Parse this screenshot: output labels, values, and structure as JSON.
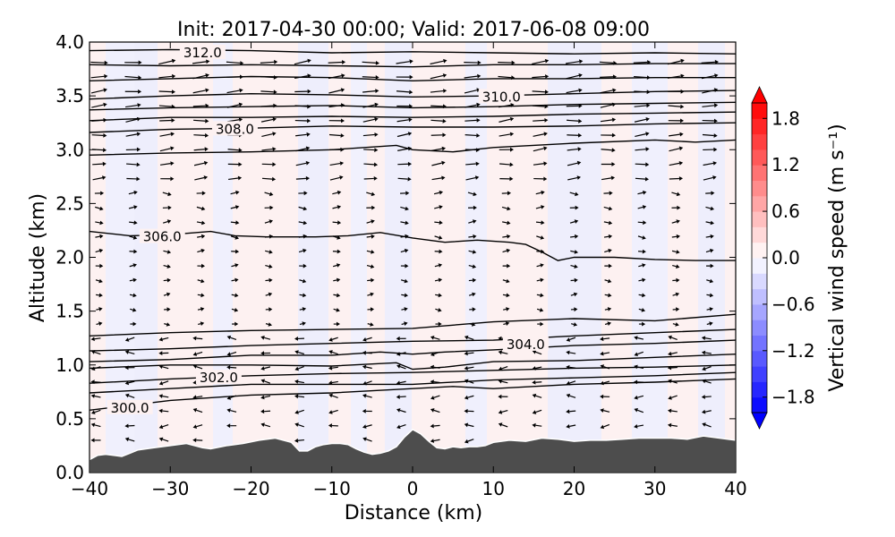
{
  "chart_data": {
    "type": "cross-section",
    "title": "Init: 2017-04-30 00:00; Valid: 2017-06-08 09:00",
    "xlabel": "Distance (km)",
    "ylabel": "Altitude (km)",
    "xlim": [
      -40,
      40
    ],
    "ylim": [
      0,
      4
    ],
    "x_ticks": [
      "−40",
      "−30",
      "−20",
      "−10",
      "0",
      "10",
      "20",
      "30",
      "40"
    ],
    "y_ticks": [
      "0.0",
      "0.5",
      "1.0",
      "1.5",
      "2.0",
      "2.5",
      "3.0",
      "3.5",
      "4.0"
    ],
    "grid": false,
    "colorbar": {
      "label": "Vertical wind speed (m s⁻¹)",
      "range": [
        -2.0,
        2.0
      ],
      "ticks": [
        "1.8",
        "1.2",
        "0.6",
        "0.0",
        "−0.6",
        "−1.2",
        "−1.8"
      ],
      "colors": {
        "positive": "#ff0000",
        "neutral": "#ffffff",
        "negative": "#0000ff"
      }
    },
    "contour_labels": [
      "312.0",
      "310.0",
      "308.0",
      "306.0",
      "304.0",
      "302.0",
      "300.0"
    ],
    "terrain": {
      "color": "#4d4d4d",
      "x": [
        -40,
        -39,
        -38,
        -37,
        -36,
        -35,
        -34,
        -33,
        -32,
        -30,
        -28,
        -26,
        -25,
        -23,
        -21,
        -19,
        -17,
        -15,
        -14,
        -13,
        -12,
        -11,
        -10,
        -9,
        -8,
        -7,
        -6,
        -5,
        -4,
        -3,
        -2,
        -1,
        0,
        1,
        2,
        3,
        4,
        5,
        6,
        7,
        8,
        9,
        10,
        12,
        14,
        16,
        18,
        20,
        22,
        24,
        26,
        28,
        30,
        32,
        34,
        36,
        38,
        40
      ],
      "y": [
        0.12,
        0.16,
        0.17,
        0.16,
        0.15,
        0.18,
        0.21,
        0.22,
        0.23,
        0.25,
        0.27,
        0.23,
        0.22,
        0.25,
        0.27,
        0.3,
        0.32,
        0.28,
        0.2,
        0.2,
        0.24,
        0.26,
        0.27,
        0.27,
        0.26,
        0.22,
        0.19,
        0.17,
        0.18,
        0.2,
        0.24,
        0.33,
        0.4,
        0.36,
        0.29,
        0.23,
        0.22,
        0.24,
        0.23,
        0.24,
        0.24,
        0.25,
        0.28,
        0.3,
        0.29,
        0.32,
        0.31,
        0.29,
        0.3,
        0.3,
        0.31,
        0.32,
        0.32,
        0.32,
        0.31,
        0.34,
        0.32,
        0.3
      ]
    },
    "contours": [
      {
        "x": [
          -40,
          -30,
          -20,
          -10,
          0,
          10,
          20,
          30,
          40
        ],
        "y": [
          3.92,
          3.93,
          3.92,
          3.9,
          3.91,
          3.9,
          3.89,
          3.9,
          3.89
        ]
      },
      {
        "x": [
          -40,
          -30,
          -20,
          -10,
          0,
          10,
          20,
          30,
          40
        ],
        "y": [
          3.79,
          3.78,
          3.79,
          3.78,
          3.77,
          3.79,
          3.79,
          3.8,
          3.8
        ]
      },
      {
        "x": [
          -40,
          -30,
          -20,
          -10,
          0,
          10,
          20,
          30,
          40
        ],
        "y": [
          3.64,
          3.66,
          3.68,
          3.67,
          3.64,
          3.66,
          3.66,
          3.67,
          3.67
        ]
      },
      {
        "x": [
          -40,
          -30,
          -20,
          -10,
          0,
          10,
          20,
          30,
          40
        ],
        "y": [
          3.47,
          3.5,
          3.52,
          3.51,
          3.49,
          3.5,
          3.52,
          3.54,
          3.55
        ]
      },
      {
        "x": [
          -40,
          -30,
          -20,
          -10,
          0,
          10,
          20,
          30,
          40
        ],
        "y": [
          3.37,
          3.39,
          3.4,
          3.41,
          3.39,
          3.4,
          3.42,
          3.43,
          3.44
        ]
      },
      {
        "x": [
          -40,
          -30,
          -20,
          -10,
          0,
          10,
          20,
          30,
          40
        ],
        "y": [
          3.27,
          3.3,
          3.3,
          3.31,
          3.3,
          3.31,
          3.33,
          3.34,
          3.35
        ]
      },
      {
        "x": [
          -40,
          -30,
          -20,
          -10,
          0,
          10,
          20,
          30,
          40
        ],
        "y": [
          3.16,
          3.19,
          3.2,
          3.22,
          3.21,
          3.21,
          3.22,
          3.24,
          3.25
        ]
      },
      {
        "x": [
          -40,
          -30,
          -20,
          -10,
          -2,
          0,
          5,
          10,
          20,
          30,
          35,
          40
        ],
        "y": [
          2.95,
          2.97,
          2.98,
          3.0,
          3.04,
          3.0,
          2.98,
          3.02,
          3.06,
          3.09,
          3.07,
          3.09
        ]
      },
      {
        "x": [
          -40,
          -35,
          -30,
          -25,
          -22,
          -18,
          -12,
          -8,
          -4,
          0,
          4,
          8,
          12,
          14,
          16,
          18,
          20,
          25,
          30,
          35,
          40
        ],
        "y": [
          2.24,
          2.2,
          2.21,
          2.24,
          2.2,
          2.19,
          2.19,
          2.2,
          2.23,
          2.18,
          2.14,
          2.16,
          2.14,
          2.12,
          2.05,
          1.97,
          2.0,
          2.0,
          1.98,
          1.97,
          1.97
        ]
      },
      {
        "x": [
          -40,
          -30,
          -20,
          -10,
          0,
          10,
          20,
          30,
          40
        ],
        "y": [
          1.27,
          1.3,
          1.32,
          1.33,
          1.34,
          1.4,
          1.43,
          1.41,
          1.47
        ]
      },
      {
        "x": [
          -40,
          -30,
          -20,
          -10,
          0,
          10,
          20,
          30,
          40
        ],
        "y": [
          1.13,
          1.15,
          1.18,
          1.2,
          1.22,
          1.23,
          1.27,
          1.3,
          1.33
        ]
      },
      {
        "x": [
          -40,
          -30,
          -20,
          -10,
          -4,
          0,
          4,
          10,
          20,
          30,
          40
        ],
        "y": [
          1.03,
          1.05,
          1.09,
          1.09,
          1.12,
          1.1,
          1.12,
          1.14,
          1.18,
          1.2,
          1.23
        ]
      },
      {
        "x": [
          -40,
          -30,
          -20,
          -10,
          -2,
          0,
          4,
          10,
          20,
          30,
          40
        ],
        "y": [
          0.97,
          1.0,
          1.0,
          0.99,
          1.02,
          0.96,
          0.98,
          1.03,
          1.04,
          1.07,
          1.1
        ]
      },
      {
        "x": [
          -40,
          -30,
          -20,
          -10,
          0,
          10,
          20,
          30,
          40
        ],
        "y": [
          0.83,
          0.87,
          0.9,
          0.92,
          0.93,
          0.95,
          0.97,
          0.98,
          1.0
        ]
      },
      {
        "x": [
          -40,
          -30,
          -20,
          -10,
          0,
          10,
          20,
          30,
          40
        ],
        "y": [
          0.74,
          0.78,
          0.82,
          0.82,
          0.82,
          0.86,
          0.88,
          0.9,
          0.93
        ]
      },
      {
        "x": [
          -40,
          -30,
          -20,
          -10,
          0,
          5,
          10,
          20,
          30,
          40
        ],
        "y": [
          0.58,
          0.67,
          0.72,
          0.74,
          0.78,
          0.8,
          0.78,
          0.82,
          0.84,
          0.87
        ]
      }
    ]
  }
}
